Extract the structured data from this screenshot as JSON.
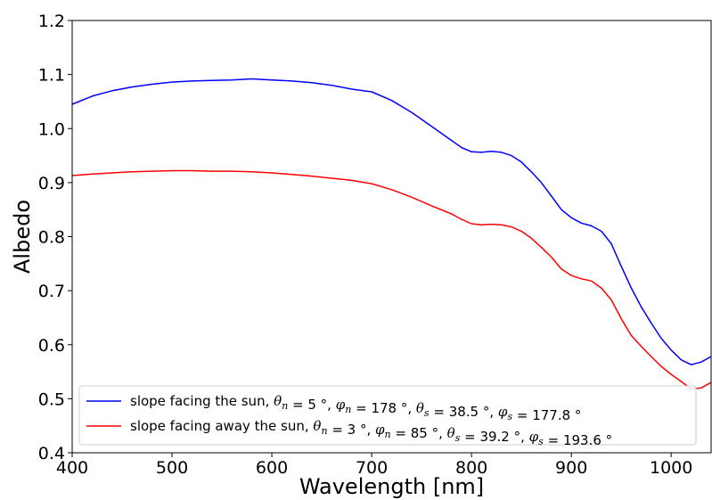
{
  "chart_data": {
    "type": "line",
    "xlabel": "Wavelength [nm]",
    "ylabel": "Albedo",
    "xlim": [
      400,
      1040
    ],
    "ylim": [
      0.4,
      1.2
    ],
    "xticks": [
      400,
      500,
      600,
      700,
      800,
      900,
      1000
    ],
    "yticks": [
      0.4,
      0.5,
      0.6,
      0.7,
      0.8,
      0.9,
      1.0,
      1.1,
      1.2
    ],
    "xtick_labels": [
      "400",
      "500",
      "600",
      "700",
      "800",
      "900",
      "1000"
    ],
    "ytick_labels": [
      "0.4",
      "0.5",
      "0.6",
      "0.7",
      "0.8",
      "0.9",
      "1.0",
      "1.1",
      "1.2"
    ],
    "grid": false,
    "legend_position": "lower-left",
    "series": [
      {
        "name": "slope facing the sun, θn = 5 °, φn = 178 °, θs = 38.5 °, φs = 177.8 °",
        "legend": {
          "prefix": "slope facing the sun, ",
          "theta_n": "5 °",
          "phi_n": "178 °",
          "theta_s": "38.5 °",
          "phi_s": "177.8 °"
        },
        "color": "#0000ff",
        "x": [
          400,
          420,
          440,
          460,
          480,
          500,
          520,
          540,
          560,
          580,
          600,
          620,
          640,
          660,
          680,
          700,
          720,
          740,
          760,
          780,
          790,
          800,
          810,
          820,
          830,
          840,
          850,
          860,
          870,
          880,
          890,
          900,
          910,
          920,
          930,
          940,
          950,
          960,
          970,
          980,
          990,
          1000,
          1010,
          1020,
          1030,
          1040
        ],
        "y": [
          1.045,
          1.06,
          1.07,
          1.077,
          1.082,
          1.086,
          1.088,
          1.089,
          1.09,
          1.092,
          1.09,
          1.088,
          1.085,
          1.08,
          1.073,
          1.068,
          1.052,
          1.03,
          1.004,
          0.978,
          0.965,
          0.957,
          0.956,
          0.958,
          0.956,
          0.95,
          0.938,
          0.92,
          0.9,
          0.875,
          0.85,
          0.835,
          0.825,
          0.82,
          0.81,
          0.787,
          0.745,
          0.705,
          0.67,
          0.64,
          0.612,
          0.59,
          0.572,
          0.563,
          0.568,
          0.578
        ]
      },
      {
        "name": "slope facing away the sun, θn = 3 °, φn = 85 °, θs = 39.2 °, φs = 193.6 °",
        "legend": {
          "prefix": "slope facing away the sun, ",
          "theta_n": "3 °",
          "phi_n": "85 °",
          "theta_s": "39.2 °",
          "phi_s": "193.6 °"
        },
        "color": "#ff0000",
        "x": [
          400,
          420,
          440,
          460,
          480,
          500,
          520,
          540,
          560,
          580,
          600,
          620,
          640,
          660,
          680,
          700,
          720,
          740,
          760,
          780,
          790,
          800,
          810,
          820,
          830,
          840,
          850,
          860,
          870,
          880,
          890,
          900,
          910,
          920,
          930,
          940,
          950,
          960,
          970,
          980,
          990,
          1000,
          1010,
          1020,
          1030,
          1040
        ],
        "y": [
          0.913,
          0.916,
          0.918,
          0.92,
          0.921,
          0.922,
          0.922,
          0.921,
          0.921,
          0.92,
          0.918,
          0.915,
          0.912,
          0.908,
          0.904,
          0.898,
          0.887,
          0.873,
          0.857,
          0.842,
          0.832,
          0.824,
          0.822,
          0.823,
          0.822,
          0.818,
          0.81,
          0.797,
          0.78,
          0.762,
          0.74,
          0.728,
          0.722,
          0.718,
          0.705,
          0.683,
          0.648,
          0.617,
          0.597,
          0.578,
          0.56,
          0.545,
          0.532,
          0.518,
          0.52,
          0.53
        ]
      }
    ]
  }
}
